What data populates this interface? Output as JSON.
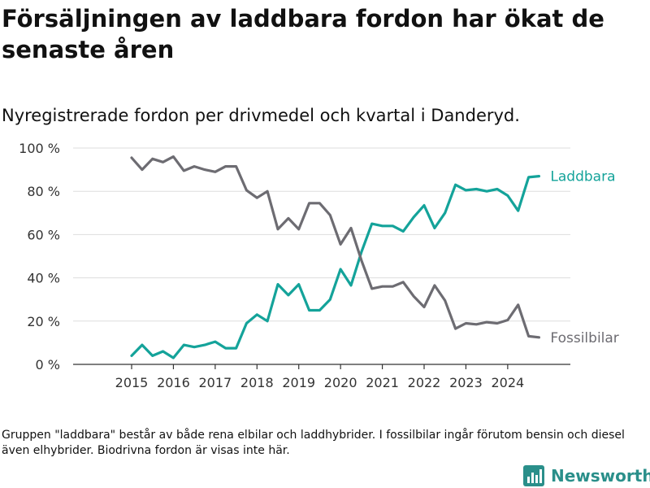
{
  "page": {
    "title": "Försäljningen av laddbara fordon har ökat de senaste åren",
    "subtitle": "Nyregistrerade fordon per drivmedel och kvartal i Danderyd.",
    "note": "Gruppen \"laddbara\" består av både rena elbilar och laddhybrider. I fossilbilar ingår förutom bensin och diesel även elhybrider. Biodrivna fordon är visas inte här.",
    "brand": "Newsworthy",
    "brand_icon": "bar-chart-logo-icon"
  },
  "chart_data": {
    "type": "line",
    "title": "Försäljningen av laddbara fordon har ökat de senaste åren",
    "subtitle": "Nyregistrerade fordon per drivmedel och kvartal i Danderyd.",
    "xlabel": "",
    "ylabel": "",
    "x_start": 2015.0,
    "x_step": 0.25,
    "xlim": [
      2013.6,
      2025.5
    ],
    "ylim": [
      0,
      100
    ],
    "x_ticks": [
      2015,
      2016,
      2017,
      2018,
      2019,
      2020,
      2021,
      2022,
      2023,
      2024
    ],
    "x_tick_labels": [
      "2015",
      "2016",
      "2017",
      "2018",
      "2019",
      "2020",
      "2021",
      "2022",
      "2023",
      "2024"
    ],
    "y_ticks": [
      0,
      20,
      40,
      60,
      80,
      100
    ],
    "y_tick_labels": [
      "0 %",
      "20 %",
      "40 %",
      "60 %",
      "80 %",
      "100 %"
    ],
    "grid": true,
    "series": [
      {
        "name": "Laddbara",
        "color": "#14a39a",
        "values": [
          4,
          9,
          4,
          6,
          3,
          9,
          8,
          9,
          10.5,
          7.5,
          7.5,
          19,
          23,
          20,
          37,
          32,
          37,
          25,
          25,
          30,
          44,
          36.5,
          52,
          65,
          64,
          64,
          61.5,
          68,
          73.5,
          63,
          70,
          83,
          80.5,
          81,
          80,
          81,
          78,
          71,
          86.5,
          87
        ]
      },
      {
        "name": "Fossilbilar",
        "color": "#6d6c72",
        "values": [
          95.5,
          90,
          95,
          93.5,
          96,
          89.5,
          91.5,
          90,
          89,
          91.5,
          91.5,
          80.5,
          77,
          80,
          62.5,
          67.5,
          62.5,
          74.5,
          74.5,
          69,
          55.5,
          63,
          48,
          35,
          36,
          36,
          38,
          31.5,
          26.5,
          36.5,
          29.5,
          16.5,
          19,
          18.5,
          19.5,
          19,
          20.5,
          27.5,
          13,
          12.5
        ]
      }
    ]
  }
}
